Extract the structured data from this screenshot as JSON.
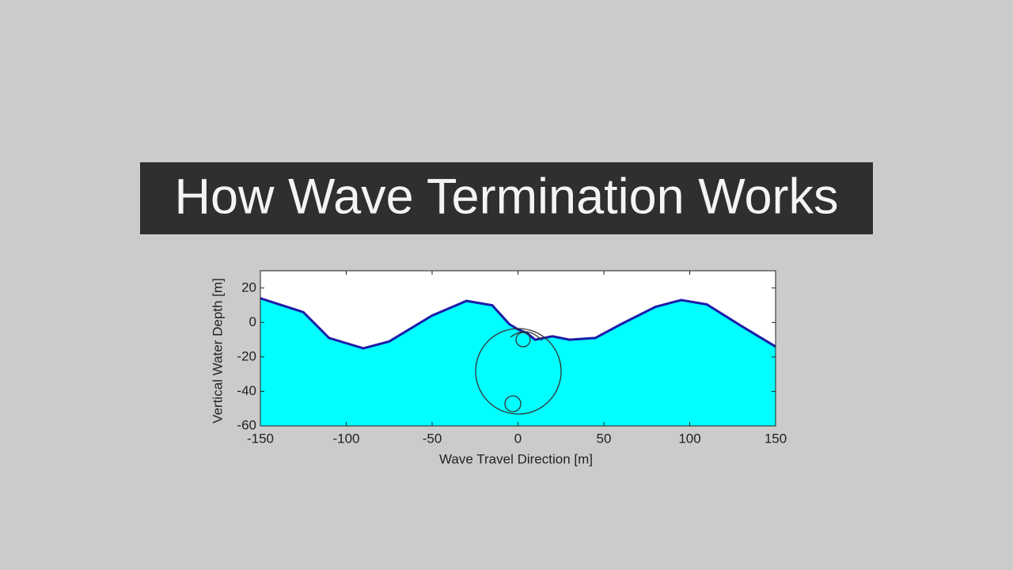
{
  "chart_data": {
    "type": "area",
    "title": "How Wave Termination Works",
    "x_label": "Wave Travel Direction [m]",
    "y_label": "Vertical Water Depth [m]",
    "x": [
      -150,
      -125,
      -110,
      -90,
      -75,
      -50,
      -30,
      -15,
      -5,
      0,
      5,
      10,
      20,
      30,
      45,
      60,
      80,
      95,
      110,
      130,
      150
    ],
    "values": [
      14,
      6,
      -9,
      -15,
      -11,
      4,
      12.5,
      10,
      -1,
      -4,
      -6,
      -10,
      -8,
      -10,
      -9,
      -1,
      9,
      13,
      10.5,
      -2,
      -14
    ],
    "color": "#1c1ca8",
    "fill_color": "#00ffff",
    "xlim": [
      -150,
      150
    ],
    "ylim": [
      -60,
      30
    ],
    "xticks": [
      -150,
      -100,
      -50,
      0,
      50,
      100,
      150
    ],
    "yticks": [
      -60,
      -40,
      -20,
      0,
      20
    ]
  }
}
